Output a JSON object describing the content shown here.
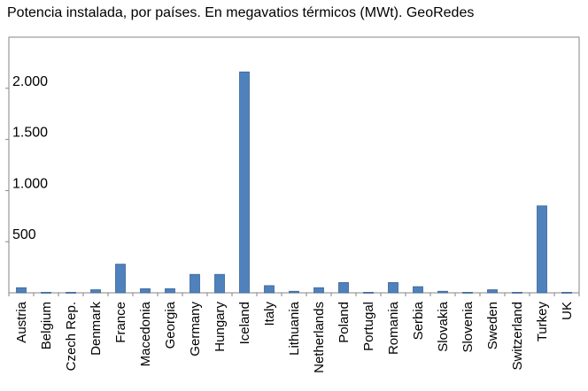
{
  "chart_data": {
    "type": "bar",
    "title": "Potencia instalada, por países. En megavatios térmicos (MWt). GeoRedes",
    "xlabel": "",
    "ylabel": "",
    "ylim": [
      0,
      2500
    ],
    "yticks": [
      {
        "value": 500,
        "label": "500"
      },
      {
        "value": 1000,
        "label": "1.000"
      },
      {
        "value": 1500,
        "label": "1.500"
      },
      {
        "value": 2000,
        "label": "2.000"
      }
    ],
    "grid": false,
    "color": "#4f81bd",
    "categories": [
      "Austria",
      "Belgium",
      "Czech Rep.",
      "Denmark",
      "France",
      "Macedonia",
      "Georgia",
      "Germany",
      "Hungary",
      "Iceland",
      "Italy",
      "Lithuania",
      "Netherlands",
      "Poland",
      "Portugal",
      "Romania",
      "Serbia",
      "Slovakia",
      "Slovenia",
      "Sweden",
      "Switzerland",
      "Turkey",
      "UK"
    ],
    "values": [
      50,
      5,
      5,
      30,
      280,
      40,
      40,
      180,
      180,
      2160,
      70,
      15,
      50,
      100,
      5,
      100,
      60,
      15,
      5,
      30,
      5,
      850,
      5
    ]
  }
}
